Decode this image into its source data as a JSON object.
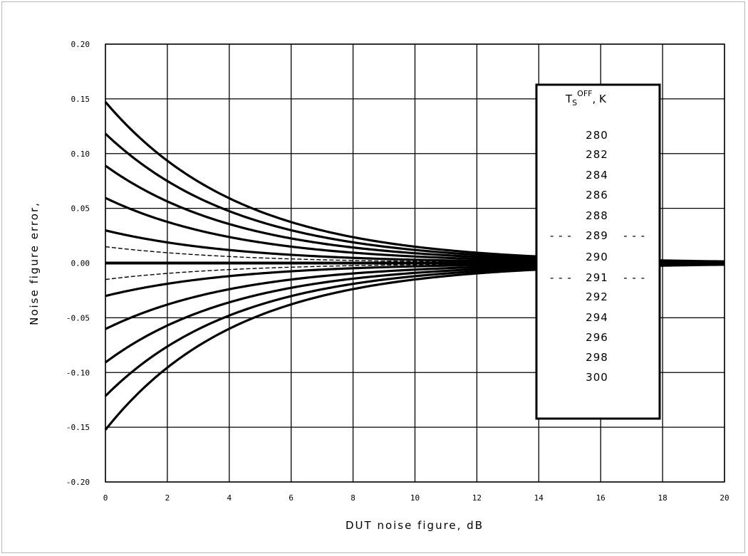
{
  "chart_data": {
    "type": "line",
    "title": "",
    "xlabel": "DUT noise figure, dB",
    "ylabel": "Noise figure error,",
    "xlim": [
      0,
      20
    ],
    "ylim": [
      -0.2,
      0.2
    ],
    "x_ticks": [
      0,
      2,
      4,
      6,
      8,
      10,
      12,
      14,
      16,
      18,
      20
    ],
    "x_tick_labels": [
      "0",
      "2",
      "4",
      "6",
      "8",
      "10",
      "12",
      "14",
      "16",
      "18",
      "20"
    ],
    "y_ticks": [
      0.2,
      0.15,
      0.1,
      0.05,
      0.0,
      -0.05,
      -0.1,
      -0.15,
      -0.2
    ],
    "y_tick_labels": [
      "0.20",
      "0.15",
      "0.10",
      "0.05",
      "0.00",
      "-0.05",
      "-0.10",
      "-0.15",
      "-0.20"
    ],
    "grid": true,
    "legend": {
      "placement": "right-center",
      "title_main": "T",
      "title_sub": "S",
      "title_sup": "OFF",
      "title_suffix": ", K",
      "entries": [
        {
          "label": "280",
          "style": "solid"
        },
        {
          "label": "282",
          "style": "solid"
        },
        {
          "label": "284",
          "style": "solid"
        },
        {
          "label": "286",
          "style": "solid"
        },
        {
          "label": "288",
          "style": "solid"
        },
        {
          "label": "289",
          "style": "dashed",
          "dash_left": "- - -",
          "dash_right": "- - -"
        },
        {
          "label": "290",
          "style": "solid"
        },
        {
          "label": "291",
          "style": "dashed",
          "dash_left": "- - -",
          "dash_right": "- - -"
        },
        {
          "label": "292",
          "style": "solid"
        },
        {
          "label": "294",
          "style": "solid"
        },
        {
          "label": "296",
          "style": "solid"
        },
        {
          "label": "298",
          "style": "solid"
        },
        {
          "label": "300",
          "style": "solid"
        }
      ]
    },
    "series": [
      {
        "name": "280",
        "t": 280,
        "style": "solid",
        "y0": 0.147
      },
      {
        "name": "282",
        "t": 282,
        "style": "solid",
        "y0": 0.116
      },
      {
        "name": "284",
        "t": 284,
        "style": "solid",
        "y0": 0.087
      },
      {
        "name": "286",
        "t": 286,
        "style": "solid",
        "y0": 0.058
      },
      {
        "name": "288",
        "t": 288,
        "style": "solid",
        "y0": 0.029
      },
      {
        "name": "289",
        "t": 289,
        "style": "dashed",
        "y0": 0.015
      },
      {
        "name": "290",
        "t": 290,
        "style": "solid",
        "y0": 0.0
      },
      {
        "name": "291",
        "t": 291,
        "style": "dashed",
        "y0": -0.015
      },
      {
        "name": "292",
        "t": 292,
        "style": "solid",
        "y0": -0.029
      },
      {
        "name": "294",
        "t": 294,
        "style": "solid",
        "y0": -0.058
      },
      {
        "name": "296",
        "t": 296,
        "style": "solid",
        "y0": -0.089
      },
      {
        "name": "298",
        "t": 298,
        "style": "solid",
        "y0": -0.12
      },
      {
        "name": "300",
        "t": 300,
        "style": "solid",
        "y0": -0.15
      }
    ],
    "line_color": "#000000"
  }
}
